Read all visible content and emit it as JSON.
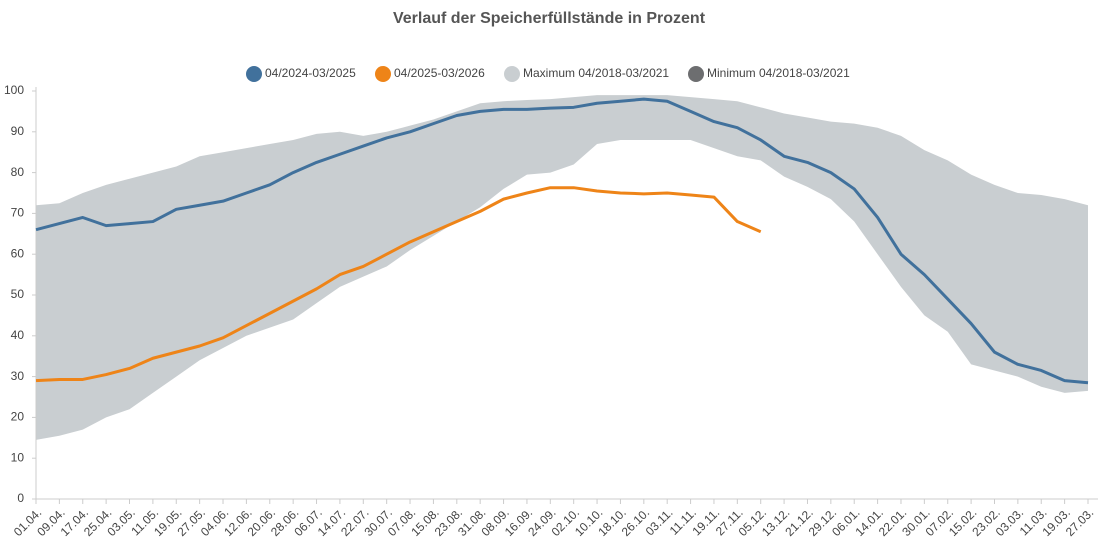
{
  "chart_data": {
    "type": "line",
    "title": "Verlauf der Speicherfüllstände in Prozent",
    "categories": [
      "01.04.",
      "09.04.",
      "17.04.",
      "25.04.",
      "03.05.",
      "11.05.",
      "19.05.",
      "27.05.",
      "04.06.",
      "12.06.",
      "20.06.",
      "28.06.",
      "06.07.",
      "14.07.",
      "22.07.",
      "30.07.",
      "07.08.",
      "15.08.",
      "23.08.",
      "31.08.",
      "08.09.",
      "16.09.",
      "24.09.",
      "02.10.",
      "10.10.",
      "18.10.",
      "26.10.",
      "03.11.",
      "11.11.",
      "19.11.",
      "27.11.",
      "05.12.",
      "13.12.",
      "21.12.",
      "29.12.",
      "06.01.",
      "14.01.",
      "22.01.",
      "30.01.",
      "07.02.",
      "15.02.",
      "23.02.",
      "03.03.",
      "11.03.",
      "19.03.",
      "27.03."
    ],
    "ylim": [
      0,
      100
    ],
    "yticks": [
      0,
      10,
      20,
      30,
      40,
      50,
      60,
      70,
      80,
      90,
      100
    ],
    "series": [
      {
        "name": "Maximum 04/2018-03/2021",
        "color": "#c9ced1",
        "band": "upper",
        "values": [
          72,
          72.5,
          75,
          77,
          78.5,
          80,
          81.5,
          84,
          85,
          86,
          87,
          88,
          89.5,
          90,
          89,
          90,
          91.5,
          93,
          95,
          97,
          97.5,
          97.8,
          98,
          98.5,
          99,
          99,
          99,
          99,
          98.5,
          98,
          97.5,
          96,
          94.5,
          93.5,
          92.5,
          92,
          91,
          89,
          85.5,
          83,
          79.5,
          77,
          75,
          74.5,
          73.5,
          72
        ]
      },
      {
        "name": "Minimum 04/2018-03/2021",
        "color": "#6d6e70",
        "band": "lower",
        "values": [
          14.5,
          15.5,
          17,
          20,
          22,
          26,
          30,
          34,
          37,
          40,
          42,
          44,
          48,
          52,
          54.5,
          57,
          61,
          64.5,
          68,
          71.5,
          76,
          79.5,
          80,
          82,
          87,
          88,
          88,
          88,
          88,
          86,
          84,
          83,
          79,
          76.5,
          73.5,
          68,
          60,
          52,
          45,
          41,
          33,
          31.5,
          30,
          27.5,
          26,
          26.5
        ]
      },
      {
        "name": "04/2024-03/2025",
        "color": "#41719c",
        "values": [
          66,
          67.5,
          69,
          67,
          67.5,
          68,
          71,
          72,
          73,
          75,
          77,
          80,
          82.5,
          84.5,
          86.5,
          88.5,
          90,
          92,
          94,
          95,
          95.5,
          95.5,
          95.8,
          96,
          97,
          97.5,
          98,
          97.5,
          95,
          92.5,
          91,
          88,
          84,
          82.5,
          80,
          76,
          69,
          60,
          55,
          49,
          43,
          36,
          33,
          31.5,
          29,
          28.5
        ]
      },
      {
        "name": "04/2025-03/2026",
        "color": "#ee8418",
        "values": [
          29,
          29.3,
          29.3,
          30.5,
          32,
          34.5,
          36,
          37.5,
          39.5,
          42.5,
          45.5,
          48.5,
          51.5,
          55,
          57,
          60,
          63,
          65.5,
          68,
          70.5,
          73.5,
          75,
          76.3,
          76.3,
          75.5,
          75,
          74.8,
          75,
          74.5,
          74,
          68,
          65.5,
          null,
          null,
          null,
          null,
          null,
          null,
          null,
          null,
          null,
          null,
          null,
          null,
          null,
          null
        ]
      }
    ],
    "legend_order": [
      2,
      3,
      0,
      1
    ]
  }
}
